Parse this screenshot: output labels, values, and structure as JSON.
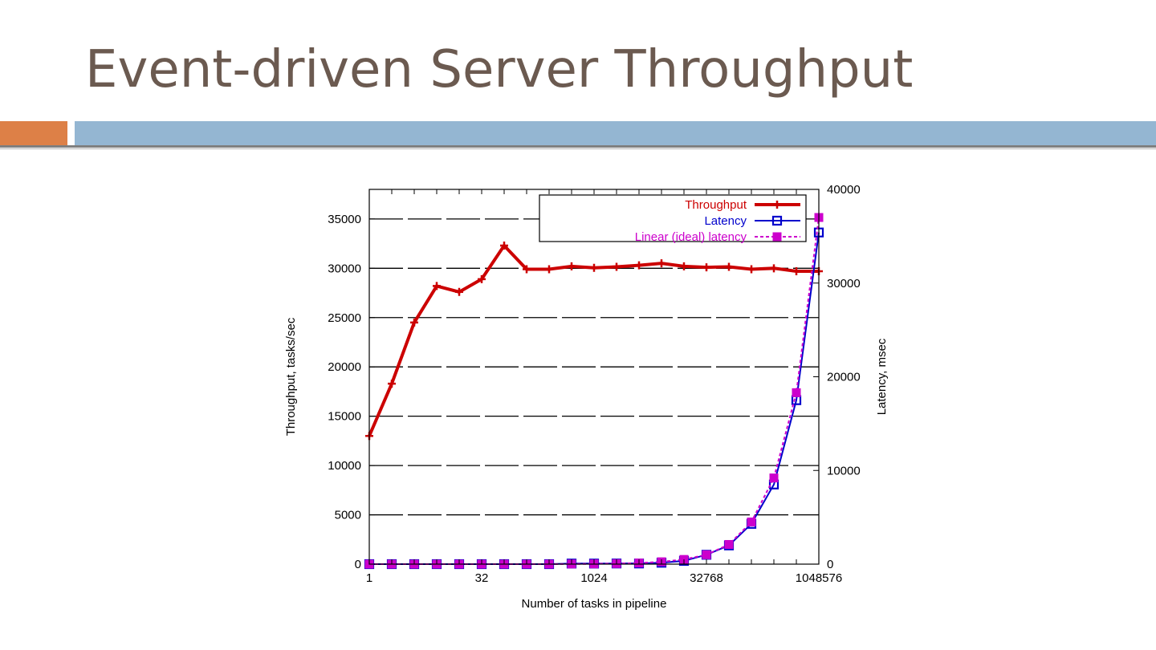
{
  "slide": {
    "title": "Event-driven Server Throughput",
    "accent_color": "#dd8047",
    "bar_color": "#94b6d2",
    "title_color": "#6b5a50"
  },
  "chart_data": {
    "type": "line",
    "title": "",
    "xlabel": "Number of tasks in pipeline",
    "ylabel_left": "Throughput, tasks/sec",
    "ylabel_right": "Latency, msec",
    "x_scale": "log2",
    "x_ticks": [
      1,
      32,
      1024,
      32768,
      1048576
    ],
    "x_tick_labels": [
      "1",
      "32",
      "1024",
      "32768",
      "1048576"
    ],
    "xlim": [
      1,
      1048576
    ],
    "ylim_left": [
      0,
      38000
    ],
    "y_ticks_left": [
      0,
      5000,
      10000,
      15000,
      20000,
      25000,
      30000,
      35000
    ],
    "ylim_right": [
      0,
      40000
    ],
    "y_ticks_right": [
      0,
      10000,
      20000,
      30000,
      40000
    ],
    "grid": true,
    "legend_position": "top-right",
    "x": [
      1,
      2,
      4,
      8,
      16,
      32,
      64,
      128,
      256,
      512,
      1024,
      2048,
      4096,
      8192,
      16384,
      32768,
      65536,
      131072,
      262144,
      524288,
      1048576
    ],
    "series": [
      {
        "name": "Throughput",
        "axis": "left",
        "color": "#cc0000",
        "marker": "plus",
        "values": [
          13000,
          18300,
          24500,
          28200,
          27600,
          28900,
          32300,
          29900,
          29900,
          30200,
          30050,
          30150,
          30300,
          30500,
          30200,
          30100,
          30150,
          29900,
          30000,
          29700,
          29700
        ]
      },
      {
        "name": "Latency",
        "axis": "right",
        "color": "#0000cc",
        "marker": "open-square",
        "values": [
          0,
          0,
          0,
          0,
          0,
          0,
          0,
          0,
          0,
          60,
          60,
          70,
          70,
          150,
          350,
          1000,
          2000,
          4300,
          8500,
          17500,
          35400
        ]
      },
      {
        "name": "Linear (ideal) latency",
        "axis": "right",
        "color": "#cc00cc",
        "marker": "filled-square",
        "values": [
          0,
          0,
          0,
          0,
          0,
          0,
          0,
          0,
          0,
          20,
          30,
          60,
          120,
          250,
          500,
          1000,
          2100,
          4500,
          9200,
          18300,
          37000
        ]
      }
    ]
  }
}
